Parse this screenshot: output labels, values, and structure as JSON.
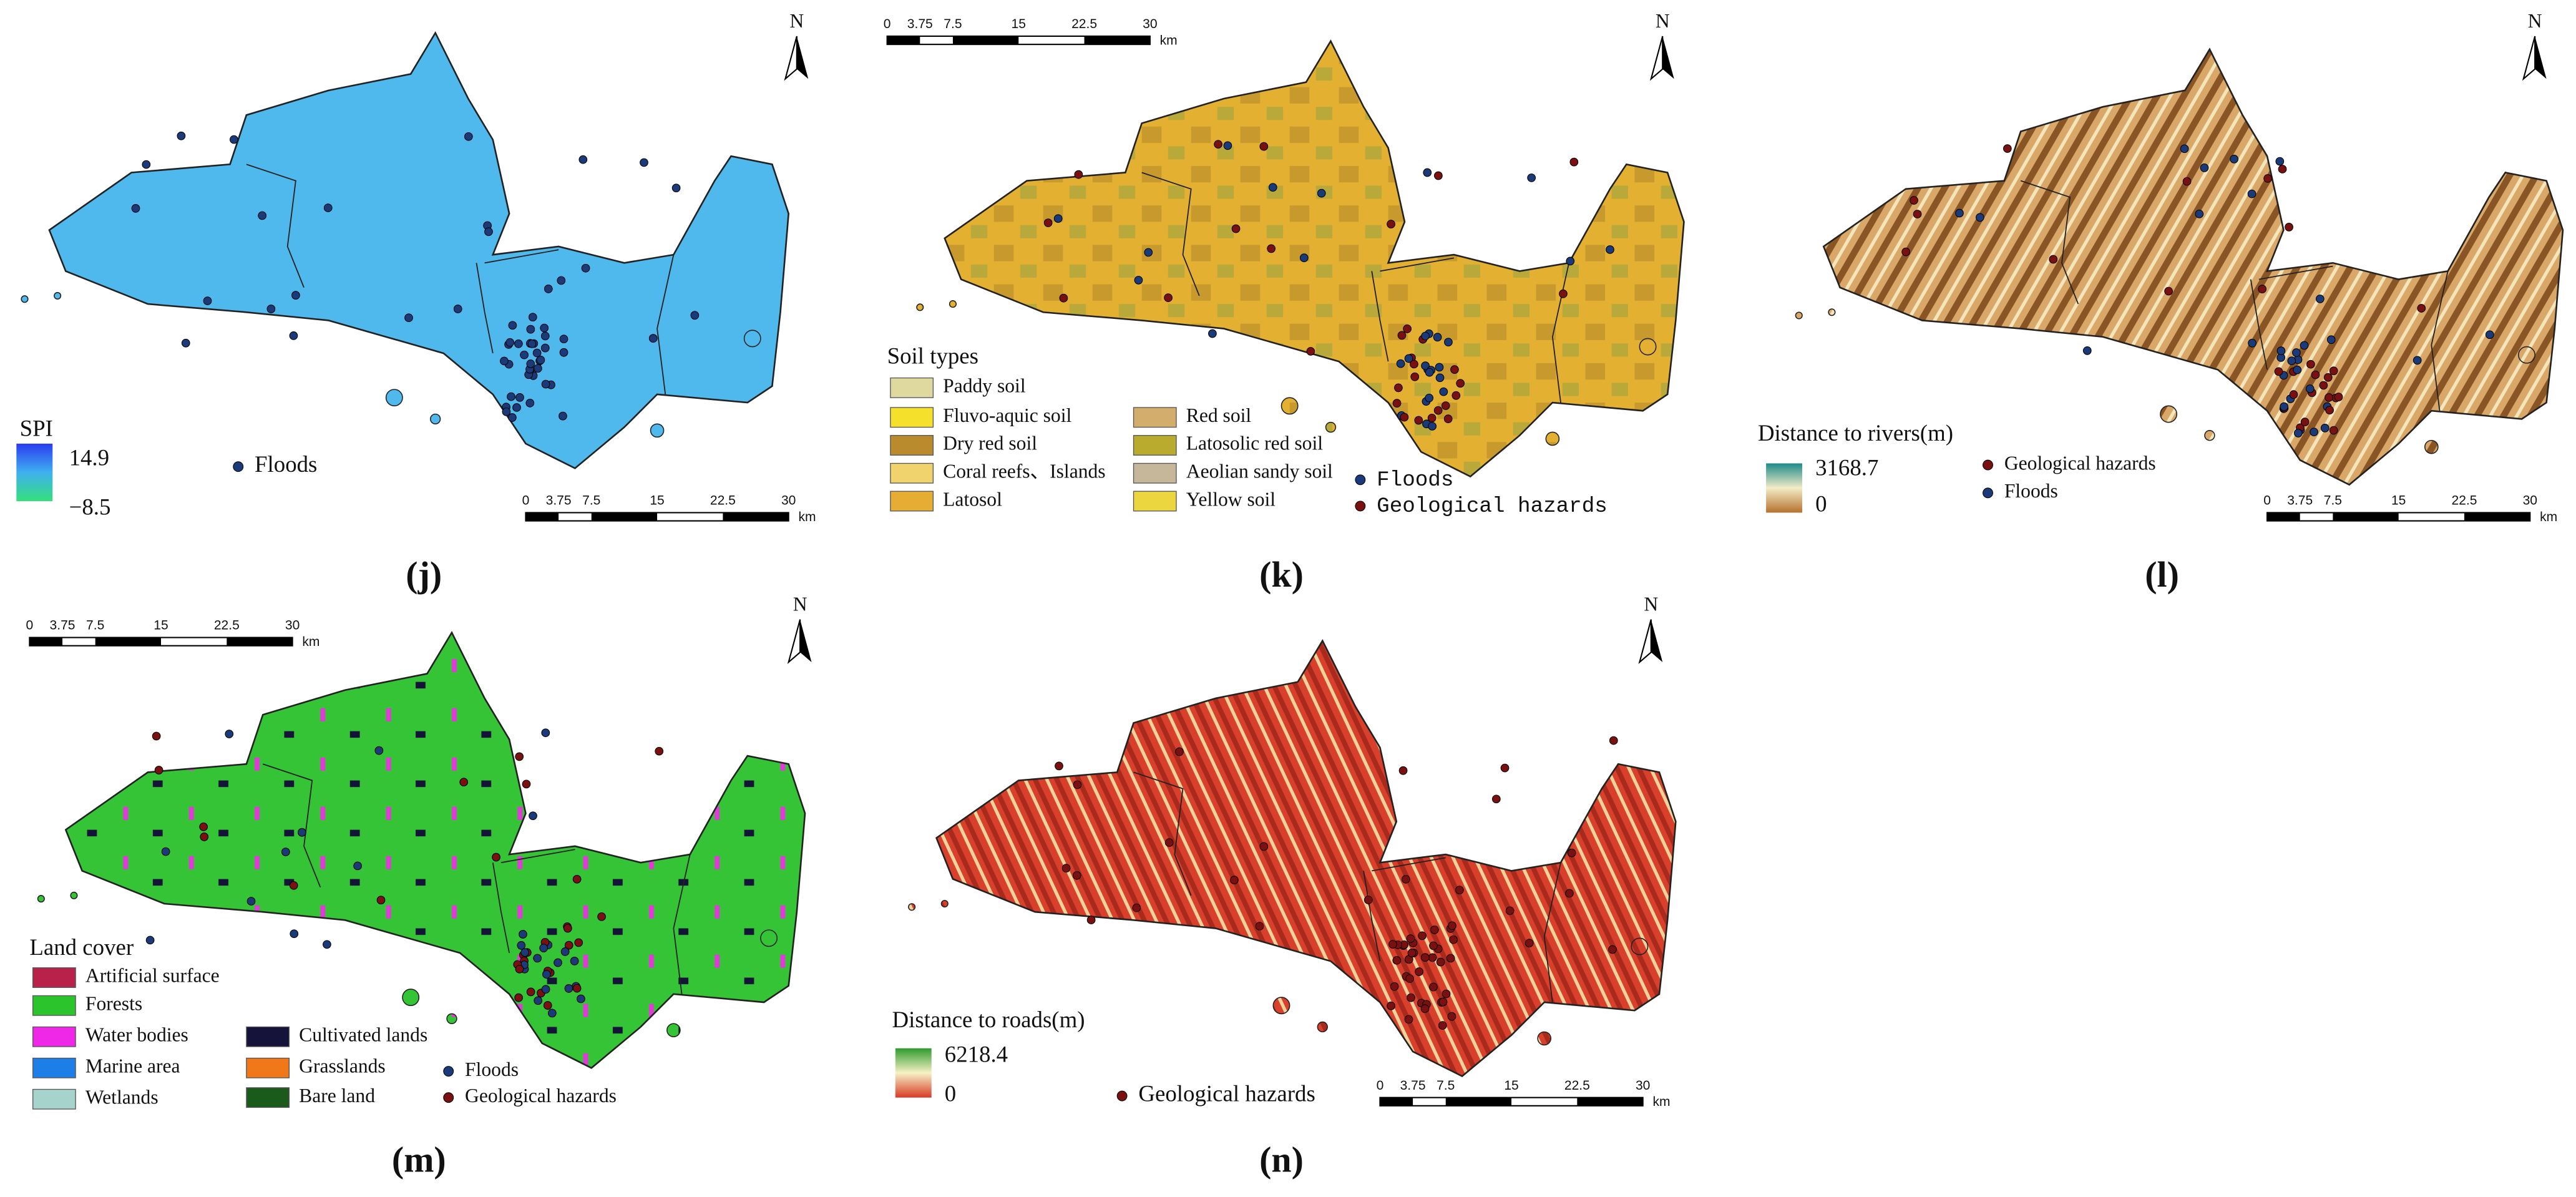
{
  "panels": [
    {
      "label": "(j)",
      "north": "N",
      "legend": {
        "title": "SPI",
        "max": "14.9",
        "min": "−8.5",
        "points": [
          "Floods"
        ]
      },
      "scale_bar": {
        "ticks": [
          "0",
          "3.75",
          "7.5",
          "15",
          "22.5",
          "30"
        ],
        "unit": "km"
      }
    },
    {
      "label": "(k)",
      "north": "N",
      "legend": {
        "title": "Soil types",
        "items": [
          "Paddy soil",
          "Fluvo-aquic soil",
          "Dry red soil",
          "Coral reefs、Islands",
          "Latosol",
          "Red soil",
          "Latosolic red soil",
          "Aeolian sandy soil",
          "Yellow soil"
        ],
        "points": [
          "Floods",
          "Geological hazards"
        ]
      },
      "scale_bar": {
        "ticks": [
          "0",
          "3.75",
          "7.5",
          "15",
          "22.5",
          "30"
        ],
        "unit": "km"
      }
    },
    {
      "label": "(l)",
      "north": "N",
      "legend": {
        "title": "Distance to rivers(m)",
        "max": "3168.7",
        "min": "0",
        "points": [
          "Geological hazards",
          "Floods"
        ]
      },
      "scale_bar": {
        "ticks": [
          "0",
          "3.75",
          "7.5",
          "15",
          "22.5",
          "30"
        ],
        "unit": "km"
      }
    },
    {
      "label": "(m)",
      "north": "N",
      "legend": {
        "title": "Land cover",
        "items": [
          "Artificial surface",
          "Forests",
          "Water bodies",
          "Marine area",
          "Wetlands",
          "Cultivated lands",
          "Grasslands",
          "Bare land"
        ],
        "points": [
          "Floods",
          "Geological hazards"
        ]
      },
      "scale_bar": {
        "ticks": [
          "0",
          "3.75",
          "7.5",
          "15",
          "22.5",
          "30"
        ],
        "unit": "km"
      }
    },
    {
      "label": "(n)",
      "north": "N",
      "legend": {
        "title": "Distance to roads(m)",
        "max": "6218.4",
        "min": "0",
        "points": [
          "Geological hazards"
        ]
      },
      "scale_bar": {
        "ticks": [
          "0",
          "3.75",
          "7.5",
          "15",
          "22.5",
          "30"
        ],
        "unit": "km"
      }
    }
  ]
}
